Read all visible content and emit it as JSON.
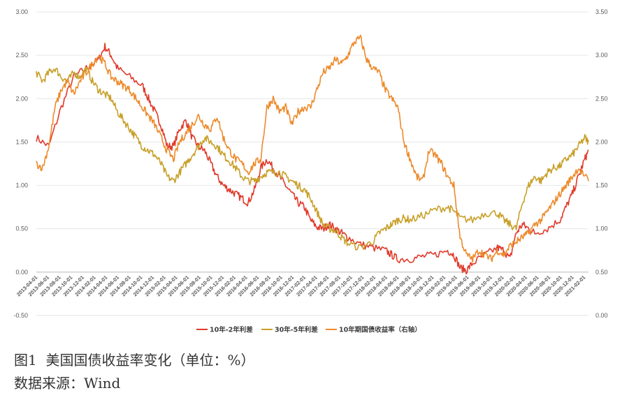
{
  "chart_data": {
    "type": "line",
    "y_left_ticks": [
      "3.00",
      "2.50",
      "2.00",
      "1.50",
      "1.00",
      "0.50",
      "0.00",
      "-0.50"
    ],
    "y_right_ticks": [
      "3.50",
      "3.00",
      "2.50",
      "2.00",
      "1.50",
      "1.00",
      "0.50",
      "0.00"
    ],
    "ylim_left": [
      -0.5,
      3.0
    ],
    "ylim_right": [
      0.0,
      3.5
    ],
    "x_tick_labels": [
      "2013-04-01",
      "2013-06-01",
      "2013-08-01",
      "2013-10-01",
      "2013-12-01",
      "2014-02-01",
      "2014-04-01",
      "2014-06-01",
      "2014-08-01",
      "2014-10-01",
      "2014-12-01",
      "2015-02-01",
      "2015-04-01",
      "2015-06-01",
      "2015-08-01",
      "2015-10-01",
      "2015-12-01",
      "2016-02-01",
      "2016-04-01",
      "2016-06-01",
      "2016-08-01",
      "2016-10-01",
      "2016-12-01",
      "2017-02-01",
      "2017-04-01",
      "2017-06-01",
      "2017-08-01",
      "2017-10-01",
      "2017-12-01",
      "2018-02-01",
      "2018-04-01",
      "2018-06-01",
      "2018-08-01",
      "2018-10-01",
      "2018-12-01",
      "2019-02-01",
      "2019-04-01",
      "2019-06-01",
      "2019-08-01",
      "2019-10-01",
      "2019-12-01",
      "2020-02-01",
      "2020-04-01",
      "2020-06-01",
      "2020-08-01",
      "2020-10-01",
      "2020-12-01",
      "2021-02-01"
    ],
    "series": [
      {
        "name": "10年-2年利差",
        "color": "#e03a2a",
        "axis": "left",
        "points": [
          [
            0,
            1.55
          ],
          [
            2,
            1.45
          ],
          [
            4,
            1.9
          ],
          [
            6,
            2.25
          ],
          [
            8,
            2.35
          ],
          [
            10,
            2.45
          ],
          [
            11,
            2.6
          ],
          [
            12,
            2.5
          ],
          [
            13,
            2.35
          ],
          [
            15,
            2.25
          ],
          [
            17,
            2.15
          ],
          [
            18,
            2.0
          ],
          [
            19,
            1.85
          ],
          [
            20,
            1.7
          ],
          [
            21,
            1.45
          ],
          [
            22,
            1.45
          ],
          [
            23,
            1.65
          ],
          [
            24,
            1.75
          ],
          [
            25,
            1.55
          ],
          [
            26,
            1.45
          ],
          [
            27,
            1.4
          ],
          [
            28,
            1.25
          ],
          [
            29,
            1.1
          ],
          [
            30,
            1.0
          ],
          [
            31,
            0.95
          ],
          [
            32,
            0.9
          ],
          [
            33,
            0.85
          ],
          [
            34,
            0.8
          ],
          [
            35,
            0.95
          ],
          [
            36,
            1.2
          ],
          [
            37,
            1.3
          ],
          [
            38,
            1.2
          ],
          [
            39,
            1.1
          ],
          [
            40,
            1.0
          ],
          [
            41,
            0.9
          ],
          [
            42,
            0.8
          ],
          [
            43,
            0.75
          ],
          [
            44,
            0.6
          ],
          [
            45,
            0.52
          ],
          [
            46,
            0.5
          ],
          [
            47,
            0.55
          ],
          [
            48,
            0.5
          ],
          [
            49,
            0.45
          ],
          [
            50,
            0.4
          ],
          [
            52,
            0.32
          ],
          [
            54,
            0.28
          ],
          [
            56,
            0.25
          ],
          [
            57,
            0.2
          ],
          [
            58,
            0.15
          ],
          [
            60,
            0.15
          ],
          [
            62,
            0.18
          ],
          [
            64,
            0.2
          ],
          [
            66,
            0.25
          ],
          [
            67,
            0.2
          ],
          [
            68,
            0.05
          ],
          [
            69,
            0.02
          ],
          [
            70,
            0.1
          ],
          [
            72,
            0.2
          ],
          [
            74,
            0.28
          ],
          [
            75,
            0.25
          ],
          [
            76,
            0.15
          ],
          [
            77,
            0.45
          ],
          [
            78,
            0.55
          ],
          [
            79,
            0.5
          ],
          [
            80,
            0.45
          ],
          [
            82,
            0.5
          ],
          [
            84,
            0.6
          ],
          [
            85,
            0.75
          ],
          [
            86,
            0.9
          ],
          [
            87,
            1.1
          ],
          [
            88,
            1.3
          ],
          [
            88.6,
            1.4
          ]
        ]
      },
      {
        "name": "30年-5年利差",
        "color": "#c8a02a",
        "axis": "left",
        "points": [
          [
            0,
            2.3
          ],
          [
            1,
            2.2
          ],
          [
            2,
            2.3
          ],
          [
            3,
            2.35
          ],
          [
            4,
            2.25
          ],
          [
            5,
            2.2
          ],
          [
            6,
            2.3
          ],
          [
            7,
            2.25
          ],
          [
            8,
            2.35
          ],
          [
            9,
            2.2
          ],
          [
            10,
            2.1
          ],
          [
            11,
            2.05
          ],
          [
            12,
            2.0
          ],
          [
            13,
            1.85
          ],
          [
            14,
            1.75
          ],
          [
            15,
            1.65
          ],
          [
            16,
            1.55
          ],
          [
            17,
            1.45
          ],
          [
            18,
            1.4
          ],
          [
            19,
            1.35
          ],
          [
            20,
            1.25
          ],
          [
            21,
            1.1
          ],
          [
            22,
            1.05
          ],
          [
            23,
            1.15
          ],
          [
            24,
            1.25
          ],
          [
            25,
            1.35
          ],
          [
            26,
            1.45
          ],
          [
            27,
            1.55
          ],
          [
            28,
            1.5
          ],
          [
            29,
            1.45
          ],
          [
            30,
            1.35
          ],
          [
            31,
            1.28
          ],
          [
            32,
            1.2
          ],
          [
            33,
            1.1
          ],
          [
            34,
            1.05
          ],
          [
            35,
            1.05
          ],
          [
            36,
            1.1
          ],
          [
            37,
            1.15
          ],
          [
            38,
            1.15
          ],
          [
            39,
            1.15
          ],
          [
            40,
            1.1
          ],
          [
            41,
            1.05
          ],
          [
            42,
            1.0
          ],
          [
            43,
            0.95
          ],
          [
            44,
            0.85
          ],
          [
            45,
            0.7
          ],
          [
            46,
            0.55
          ],
          [
            47,
            0.5
          ],
          [
            48,
            0.48
          ],
          [
            49,
            0.4
          ],
          [
            50,
            0.33
          ],
          [
            52,
            0.28
          ],
          [
            54,
            0.35
          ],
          [
            55,
            0.45
          ],
          [
            56,
            0.5
          ],
          [
            57,
            0.55
          ],
          [
            58,
            0.6
          ],
          [
            59,
            0.62
          ],
          [
            60,
            0.6
          ],
          [
            62,
            0.65
          ],
          [
            64,
            0.72
          ],
          [
            66,
            0.75
          ],
          [
            67,
            0.7
          ],
          [
            68,
            0.62
          ],
          [
            70,
            0.6
          ],
          [
            72,
            0.68
          ],
          [
            74,
            0.68
          ],
          [
            75,
            0.6
          ],
          [
            76,
            0.55
          ],
          [
            77,
            0.5
          ],
          [
            78,
            0.8
          ],
          [
            79,
            1.0
          ],
          [
            80,
            1.1
          ],
          [
            81,
            1.05
          ],
          [
            82,
            1.15
          ],
          [
            83,
            1.2
          ],
          [
            84,
            1.22
          ],
          [
            85,
            1.3
          ],
          [
            86,
            1.35
          ],
          [
            87,
            1.45
          ],
          [
            88,
            1.55
          ],
          [
            88.6,
            1.5
          ]
        ]
      },
      {
        "name": "10年期国债收益率（右轴）",
        "color": "#ed8a2a",
        "axis": "right",
        "points": [
          [
            0,
            1.75
          ],
          [
            1,
            1.7
          ],
          [
            2,
            1.95
          ],
          [
            3,
            2.4
          ],
          [
            4,
            2.6
          ],
          [
            5,
            2.7
          ],
          [
            6,
            2.55
          ],
          [
            7,
            2.7
          ],
          [
            8,
            2.8
          ],
          [
            9,
            2.9
          ],
          [
            10,
            3.0
          ],
          [
            11,
            2.9
          ],
          [
            12,
            2.75
          ],
          [
            13,
            2.7
          ],
          [
            14,
            2.65
          ],
          [
            15,
            2.6
          ],
          [
            16,
            2.5
          ],
          [
            17,
            2.4
          ],
          [
            18,
            2.3
          ],
          [
            19,
            2.2
          ],
          [
            20,
            2.05
          ],
          [
            21,
            1.9
          ],
          [
            22,
            1.8
          ],
          [
            23,
            2.0
          ],
          [
            24,
            2.1
          ],
          [
            25,
            2.2
          ],
          [
            26,
            2.3
          ],
          [
            27,
            2.2
          ],
          [
            28,
            2.15
          ],
          [
            29,
            2.3
          ],
          [
            30,
            2.05
          ],
          [
            31,
            1.9
          ],
          [
            32,
            1.8
          ],
          [
            33,
            1.75
          ],
          [
            34,
            1.65
          ],
          [
            35,
            1.75
          ],
          [
            36,
            1.8
          ],
          [
            37,
            2.4
          ],
          [
            38,
            2.5
          ],
          [
            39,
            2.35
          ],
          [
            40,
            2.4
          ],
          [
            41,
            2.2
          ],
          [
            42,
            2.35
          ],
          [
            43,
            2.4
          ],
          [
            44,
            2.4
          ],
          [
            45,
            2.6
          ],
          [
            46,
            2.8
          ],
          [
            47,
            2.85
          ],
          [
            48,
            2.95
          ],
          [
            49,
            2.9
          ],
          [
            50,
            3.0
          ],
          [
            51,
            3.15
          ],
          [
            52,
            3.2
          ],
          [
            53,
            2.95
          ],
          [
            54,
            2.85
          ],
          [
            55,
            2.8
          ],
          [
            56,
            2.6
          ],
          [
            57,
            2.5
          ],
          [
            58,
            2.4
          ],
          [
            59,
            2.0
          ],
          [
            60,
            1.8
          ],
          [
            61,
            1.6
          ],
          [
            62,
            1.55
          ],
          [
            63,
            1.9
          ],
          [
            64,
            1.85
          ],
          [
            65,
            1.75
          ],
          [
            66,
            1.6
          ],
          [
            67,
            1.5
          ],
          [
            68,
            0.9
          ],
          [
            69,
            0.7
          ],
          [
            70,
            0.65
          ],
          [
            71,
            0.75
          ],
          [
            72,
            0.7
          ],
          [
            73,
            0.65
          ],
          [
            74,
            0.75
          ],
          [
            75,
            0.7
          ],
          [
            76,
            0.8
          ],
          [
            77,
            0.85
          ],
          [
            78,
            0.9
          ],
          [
            79,
            0.95
          ],
          [
            80,
            1.05
          ],
          [
            81,
            1.1
          ],
          [
            82,
            1.2
          ],
          [
            83,
            1.3
          ],
          [
            84,
            1.4
          ],
          [
            85,
            1.5
          ],
          [
            86,
            1.6
          ],
          [
            87,
            1.7
          ],
          [
            88.6,
            1.55
          ]
        ]
      }
    ]
  },
  "caption": {
    "title": "图1  美国国债收益率变化（单位：%）",
    "source": "数据来源：Wind"
  }
}
